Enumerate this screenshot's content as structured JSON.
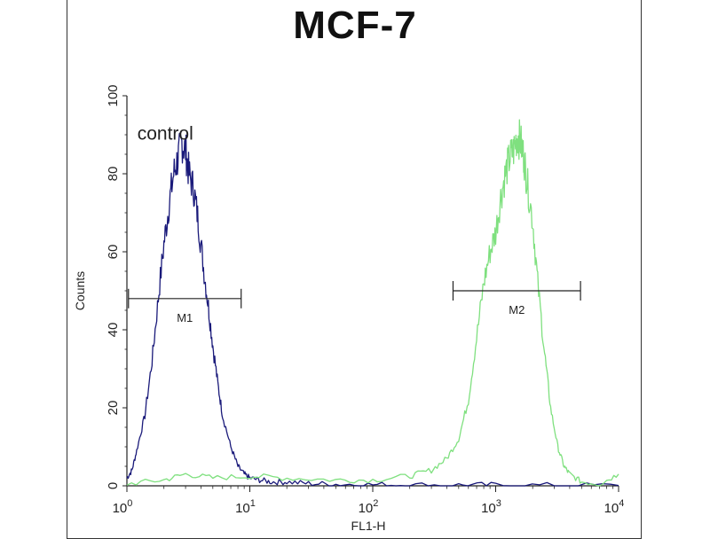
{
  "chart_data": {
    "type": "line",
    "title": "MCF-7",
    "xlabel": "FL1-H",
    "ylabel": "Counts",
    "x_scale": "log",
    "xlim": [
      1,
      10000
    ],
    "ylim": [
      0,
      100
    ],
    "x_ticks": [
      1,
      10,
      100,
      1000,
      10000
    ],
    "x_tick_labels": [
      {
        "base": "10",
        "exp": "0"
      },
      {
        "base": "10",
        "exp": "1"
      },
      {
        "base": "10",
        "exp": "2"
      },
      {
        "base": "10",
        "exp": "3"
      },
      {
        "base": "10",
        "exp": "4"
      }
    ],
    "y_ticks": [
      0,
      20,
      40,
      60,
      80,
      100
    ],
    "y_tick_labels": [
      "0",
      "20",
      "40",
      "60",
      "80",
      "100"
    ],
    "grid": false,
    "annotation": {
      "text": "control",
      "x": 1.1,
      "y": 91
    },
    "markers": [
      {
        "label": "M1",
        "x_start": 1.03,
        "x_end": 8.5,
        "y": 48
      },
      {
        "label": "M2",
        "x_start": 450,
        "x_end": 4900,
        "y": 50
      }
    ],
    "series": [
      {
        "color": "#1a1a7a",
        "x": [
          1.0,
          1.1,
          1.2,
          1.4,
          1.6,
          1.8,
          2.0,
          2.2,
          2.4,
          2.6,
          2.8,
          3.0,
          3.2,
          3.5,
          3.8,
          4.2,
          4.6,
          5.0,
          5.5,
          6.0,
          7.0,
          8.0,
          9.0,
          10,
          12,
          15,
          20,
          30,
          50,
          100,
          200,
          500,
          1000,
          3000,
          10000
        ],
        "y": [
          2,
          4,
          9,
          18,
          32,
          48,
          62,
          72,
          80,
          84,
          88,
          86,
          80,
          76,
          68,
          56,
          46,
          36,
          26,
          18,
          10,
          5,
          3,
          2,
          1.5,
          1,
          1,
          0.6,
          0.4,
          0.3,
          0.2,
          0.2,
          0.2,
          0.1,
          0.1
        ]
      },
      {
        "color": "#7fe07f",
        "x": [
          1.0,
          2,
          3,
          5,
          10,
          20,
          50,
          100,
          200,
          300,
          400,
          500,
          600,
          700,
          800,
          900,
          1000,
          1100,
          1200,
          1300,
          1400,
          1500,
          1600,
          1700,
          1800,
          2000,
          2200,
          2500,
          2800,
          3200,
          3600,
          4000,
          5000,
          7000,
          10000
        ],
        "y": [
          0.5,
          1.5,
          3,
          2,
          2.5,
          2,
          1.5,
          1.5,
          2.5,
          4,
          7,
          12,
          22,
          38,
          52,
          60,
          65,
          74,
          80,
          84,
          86,
          90,
          88,
          84,
          78,
          68,
          52,
          34,
          20,
          10,
          5,
          3,
          1,
          0.5,
          3
        ]
      }
    ]
  }
}
